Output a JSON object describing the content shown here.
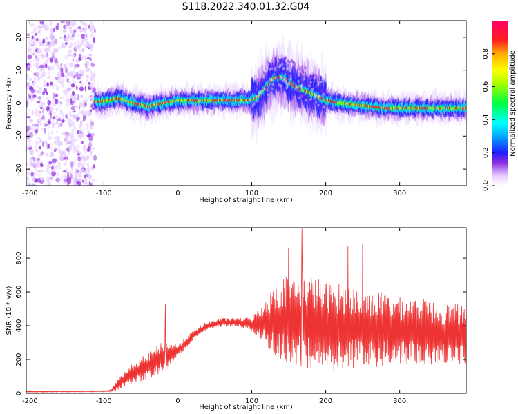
{
  "title": "S118.2022.340.01.32.G04",
  "chart_data": [
    {
      "type": "heatmap",
      "title": "S118.2022.340.01.32.G04",
      "xlabel": "Height of straight line (km)",
      "ylabel": "Frequency (Hz)",
      "xlim": [
        -205,
        390
      ],
      "ylim": [
        -25,
        25
      ],
      "xticks": [
        -200,
        -100,
        0,
        100,
        200,
        300
      ],
      "xtick_labels": [
        "-200",
        "-100",
        "0",
        "100",
        "200",
        "300"
      ],
      "yticks": [
        -20,
        -10,
        0,
        10,
        20
      ],
      "ytick_labels": [
        "-20",
        "-10",
        "0",
        "10",
        "20"
      ],
      "colorbar": {
        "label": "Normalized spectral amplitude",
        "range": [
          0,
          1
        ],
        "ticks": [
          0.0,
          0.2,
          0.4,
          0.6,
          0.8
        ],
        "tick_labels": [
          "0.0",
          "0.2",
          "0.4",
          "0.6",
          "0.8"
        ],
        "colormap": "rainbow"
      },
      "ridge": {
        "x": [
          -115,
          -100,
          -80,
          -60,
          -40,
          -20,
          0,
          20,
          40,
          60,
          80,
          100,
          110,
          120,
          130,
          140,
          150,
          160,
          170,
          180,
          190,
          200,
          220,
          240,
          260,
          280,
          300,
          320,
          340,
          360,
          380,
          390
        ],
        "freq": [
          0.5,
          0.5,
          1.5,
          0.0,
          -1.0,
          0.0,
          0.8,
          0.8,
          0.8,
          0.8,
          0.8,
          1.0,
          2.0,
          5.0,
          7.5,
          8.0,
          6.5,
          5.0,
          4.0,
          3.0,
          2.0,
          1.0,
          0.0,
          -0.5,
          -1.0,
          -1.5,
          -1.5,
          -1.5,
          -1.5,
          -1.5,
          -1.5,
          -1.5
        ]
      },
      "noise_region_x": [
        -205,
        -112
      ]
    },
    {
      "type": "line",
      "xlabel": "Height of straight line (km)",
      "ylabel": "SNR (10 * v/v)",
      "xlim": [
        -205,
        390
      ],
      "ylim": [
        0,
        980
      ],
      "xticks": [
        -200,
        -100,
        0,
        100,
        200,
        300
      ],
      "xtick_labels": [
        "-200",
        "-100",
        "0",
        "100",
        "200",
        "300"
      ],
      "yticks": [
        0,
        200,
        400,
        600,
        800
      ],
      "ytick_labels": [
        "0",
        "200",
        "400",
        "600",
        "800"
      ],
      "color": "#ee3333",
      "envelope": {
        "x": [
          -205,
          -100,
          -90,
          -80,
          -60,
          -40,
          -20,
          0,
          20,
          40,
          60,
          80,
          100,
          120,
          140,
          160,
          180,
          200,
          220,
          240,
          260,
          280,
          300,
          320,
          340,
          360,
          380,
          390
        ],
        "y": [
          10,
          12,
          15,
          60,
          120,
          160,
          220,
          250,
          340,
          400,
          420,
          420,
          410,
          420,
          430,
          430,
          420,
          400,
          390,
          390,
          380,
          380,
          370,
          370,
          360,
          350,
          350,
          340
        ],
        "spread": [
          3,
          3,
          5,
          40,
          60,
          80,
          90,
          40,
          30,
          25,
          25,
          25,
          40,
          150,
          260,
          280,
          280,
          260,
          260,
          240,
          230,
          220,
          200,
          200,
          190,
          180,
          180,
          180
        ]
      },
      "peaks": {
        "x": [
          -17,
          168,
          150,
          230,
          250
        ],
        "y": [
          530,
          975,
          860,
          870,
          885
        ]
      }
    }
  ]
}
